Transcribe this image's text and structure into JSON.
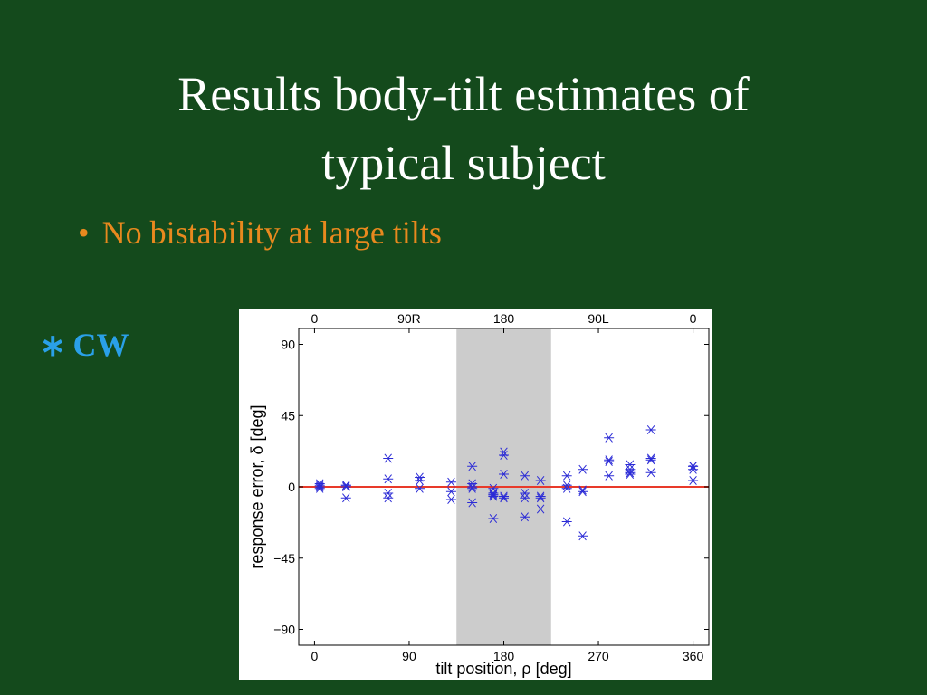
{
  "slide": {
    "title_line1": "Results body-tilt estimates of",
    "title_line2": "typical subject",
    "bullet_marker": "•",
    "bullet_text": "No bistability at large tilts",
    "legend_marker": "∗",
    "legend_label": "CW"
  },
  "colors": {
    "background": "#144a1c",
    "title": "#ffffff",
    "bullet": "#e8891e",
    "legend": "#2aa0e8",
    "points": "#2b2bd6",
    "zero_line": "#e83a2a",
    "shade": "#cccccc"
  },
  "chart_data": {
    "type": "scatter",
    "title": "",
    "xlabel": "tilt position, ρ [deg]",
    "ylabel": "response error, δ [deg]",
    "xlim": [
      -15,
      375
    ],
    "ylim": [
      -100,
      100
    ],
    "xticks": [
      0,
      90,
      180,
      270,
      360
    ],
    "xticklabels": [
      "0",
      "90",
      "180",
      "270",
      "360"
    ],
    "yticks": [
      -90,
      -45,
      0,
      45,
      90
    ],
    "yticklabels": [
      "−90",
      "−45",
      "0",
      "45",
      "90"
    ],
    "top_xticks": [
      0,
      90,
      180,
      270,
      360
    ],
    "top_xticklabels": [
      "0",
      "90R",
      "180",
      "90L",
      "0"
    ],
    "shaded_region": [
      135,
      225
    ],
    "reference_line_y": 0,
    "grid": false,
    "series": [
      {
        "marker": "asterisk",
        "x": [
          5,
          5,
          5,
          5,
          30,
          30,
          30,
          30,
          70,
          70,
          70,
          70,
          100,
          100,
          100,
          130,
          130,
          130,
          150,
          150,
          150,
          150,
          150,
          170,
          170,
          170,
          170,
          170,
          170,
          180,
          180,
          180,
          180,
          180,
          200,
          200,
          200,
          200,
          215,
          215,
          215,
          215,
          240,
          240,
          240,
          240,
          255,
          255,
          255,
          255,
          280,
          280,
          280,
          280,
          300,
          300,
          300,
          300,
          320,
          320,
          320,
          320,
          360,
          360,
          360,
          360
        ],
        "y": [
          2,
          0,
          1,
          -1,
          1,
          0,
          -7,
          1,
          18,
          5,
          -4,
          -7,
          4,
          6,
          -1,
          3,
          -3,
          -8,
          13,
          2,
          -1,
          0,
          -10,
          -4,
          -6,
          -5,
          -20,
          -1,
          -5,
          22,
          20,
          8,
          -6,
          -7,
          7,
          -4,
          -19,
          -7,
          4,
          -6,
          -7,
          -14,
          7,
          1,
          -1,
          -22,
          11,
          -3,
          -2,
          -31,
          31,
          16,
          17,
          7,
          14,
          11,
          8,
          9,
          36,
          18,
          17,
          9,
          11,
          13,
          4,
          13
        ]
      }
    ]
  }
}
